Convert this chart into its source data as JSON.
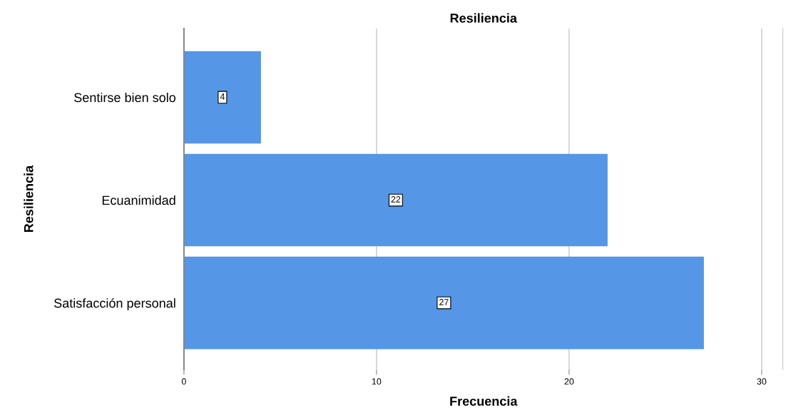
{
  "chart_data": {
    "type": "bar",
    "orientation": "horizontal",
    "title": "Resiliencia",
    "xlabel": "Frecuencia",
    "ylabel": "Resiliencia",
    "categories": [
      "Sentirse bien solo",
      "Ecuanimidad",
      "Satisfacción personal"
    ],
    "values": [
      4,
      22,
      27
    ],
    "color": "#5596e6",
    "xlim": [
      0,
      31.1
    ],
    "xticks": [
      0,
      10,
      20,
      30
    ],
    "grid": "x",
    "data_labels": true
  }
}
